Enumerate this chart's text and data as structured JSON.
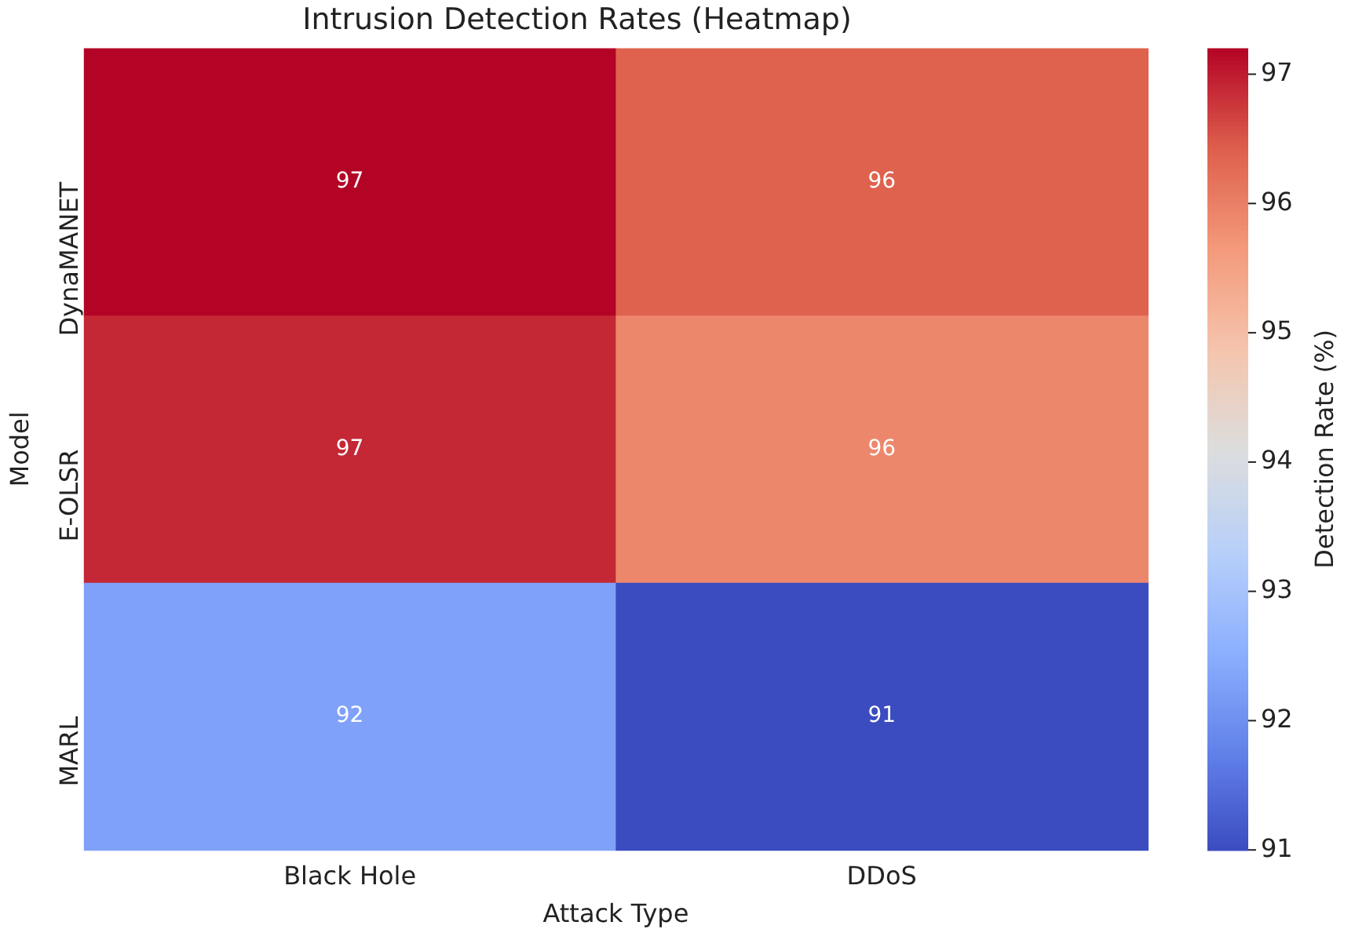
{
  "chart_data": {
    "type": "heatmap",
    "title": "Intrusion Detection Rates (Heatmap)",
    "xlabel": "Attack Type",
    "ylabel": "Model",
    "clabel": "Detection Rate (%)",
    "categories": [
      "Black Hole",
      "DDoS"
    ],
    "y_categories": [
      "DynaMANET",
      "E-OLSR",
      "MARL"
    ],
    "cells": [
      [
        97.2,
        96.4
      ],
      [
        96.9,
        95.9
      ],
      [
        92.3,
        91.0
      ]
    ],
    "cell_labels": [
      [
        "97",
        "96"
      ],
      [
        "97",
        "96"
      ],
      [
        "92",
        "91"
      ]
    ],
    "clim": [
      91.0,
      97.2
    ],
    "cticks": [
      91,
      92,
      93,
      94,
      95,
      96,
      97
    ]
  }
}
